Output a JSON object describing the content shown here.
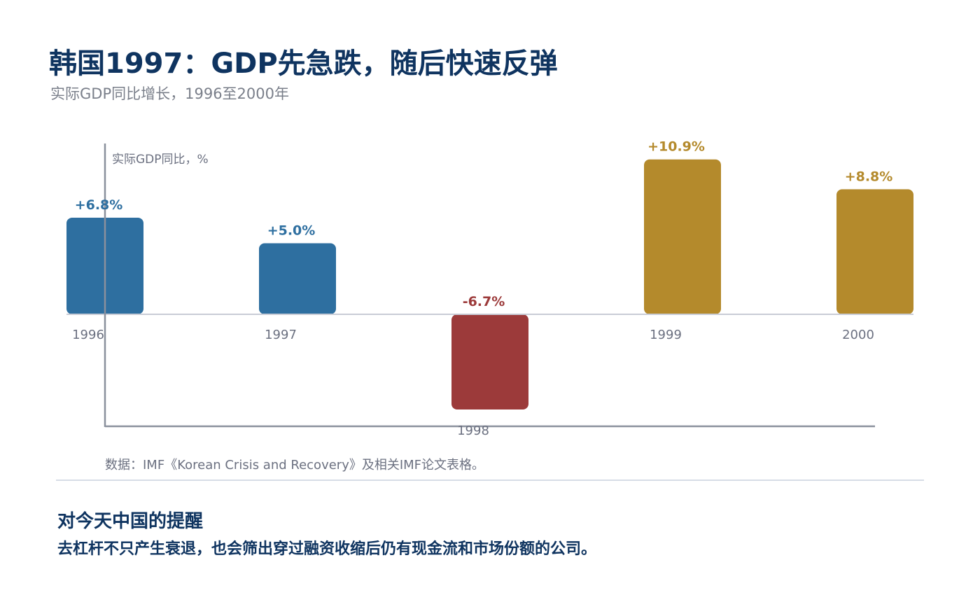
{
  "header": {
    "title": "韩国1997：GDP先急跌，随后快速反弹",
    "subtitle": "实际GDP同比增长，1996至2000年"
  },
  "chart_data": {
    "type": "bar",
    "categories": [
      "1996",
      "1997",
      "1998",
      "1999",
      "2000"
    ],
    "values": [
      6.8,
      5.0,
      -6.7,
      10.9,
      8.8
    ],
    "data_labels": [
      "+6.8%",
      "+5.0%",
      "-6.7%",
      "+10.9%",
      "+8.8%"
    ],
    "ylabel": "实际GDP同比，%",
    "ylim": [
      -8,
      11
    ],
    "grid": false,
    "legend": "none",
    "colors": {
      "pre_crisis": "#2e6fa0",
      "crisis": "#9c3a3a",
      "recovery": "#b48a2c"
    },
    "bar_color_keys": [
      "pre_crisis",
      "pre_crisis",
      "crisis",
      "recovery",
      "recovery"
    ]
  },
  "footer": {
    "source": "数据：IMF《Korean Crisis and Recovery》及相关IMF论文表格。",
    "insight_heading": "对今天中国的提醒",
    "insight_text": "去杠杆不只产生衰退，也会筛出穿过融资收缩后仍有现金流和市场份额的公司。"
  }
}
